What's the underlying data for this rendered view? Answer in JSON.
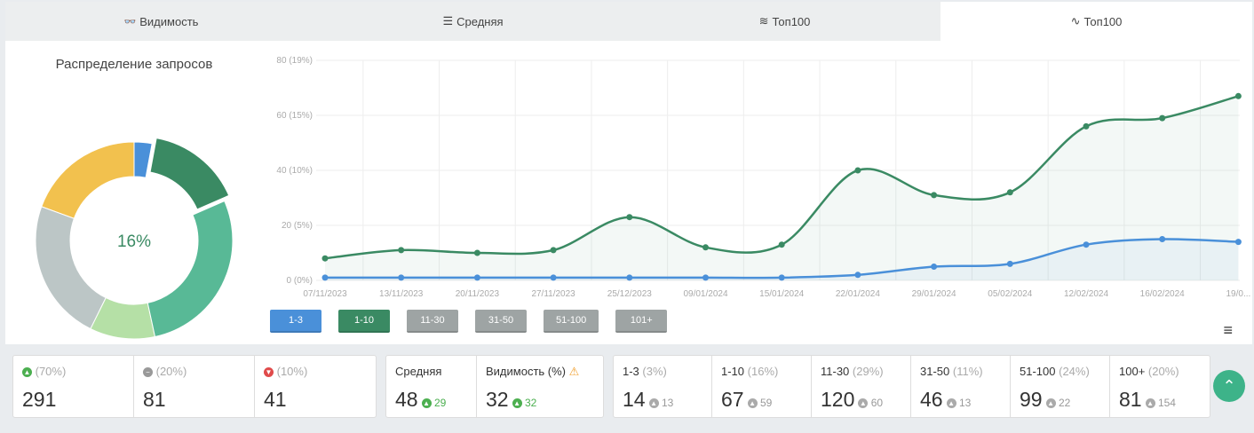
{
  "tabs": [
    {
      "label": "Видимость",
      "icon": "glasses-icon",
      "glyph": "👓"
    },
    {
      "label": "Средняя",
      "icon": "lines-icon",
      "glyph": "☰"
    },
    {
      "label": "Топ100",
      "icon": "layers-icon",
      "glyph": "≋"
    },
    {
      "label": "Топ100",
      "icon": "chart-line-icon",
      "glyph": "∿"
    }
  ],
  "donut": {
    "title": "Распределение запросов",
    "center": "16%",
    "segments": [
      {
        "name": "1-3",
        "pct": 3,
        "color": "#4a90d9"
      },
      {
        "name": "1-10",
        "pct": 16,
        "color": "#3a8a63"
      },
      {
        "name": "11-30",
        "pct": 29,
        "color": "#58b996"
      },
      {
        "name": "31-50",
        "pct": 11,
        "color": "#b5e0a6"
      },
      {
        "name": "51-100",
        "pct": 24,
        "color": "#bcc6c6"
      },
      {
        "name": "100+",
        "pct": 20,
        "color": "#f2c14e"
      }
    ]
  },
  "chart_data": {
    "type": "line",
    "x": [
      "07/11/2023",
      "13/11/2023",
      "20/11/2023",
      "27/11/2023",
      "25/12/2023",
      "09/01/2024",
      "15/01/2024",
      "22/01/2024",
      "29/01/2024",
      "05/02/2024",
      "12/02/2024",
      "16/02/2024",
      "19/0..."
    ],
    "yticks": [
      "0 (0%)",
      "20 (5%)",
      "40 (10%)",
      "60 (15%)",
      "80 (19%)"
    ],
    "ylim": [
      0,
      80
    ],
    "series": [
      {
        "name": "1-10",
        "color": "#3a8a63",
        "values": [
          8,
          11,
          10,
          11,
          23,
          12,
          13,
          40,
          31,
          32,
          56,
          59,
          67
        ]
      },
      {
        "name": "1-3",
        "color": "#4a90d9",
        "values": [
          1,
          1,
          1,
          1,
          1,
          1,
          1,
          2,
          5,
          6,
          13,
          15,
          14
        ]
      }
    ]
  },
  "ranges": [
    {
      "label": "1-3",
      "color": "#4a90d9"
    },
    {
      "label": "1-10",
      "color": "#3a8a63"
    },
    {
      "label": "11-30",
      "color": "#9ea4a4"
    },
    {
      "label": "31-50",
      "color": "#9ea4a4"
    },
    {
      "label": "51-100",
      "color": "#9ea4a4"
    },
    {
      "label": "101+",
      "color": "#9ea4a4"
    }
  ],
  "stats": {
    "up": {
      "pct": "(70%)",
      "value": "291"
    },
    "same": {
      "pct": "(20%)",
      "value": "81"
    },
    "down": {
      "pct": "(10%)",
      "value": "41"
    }
  },
  "avg": {
    "label": "Средняя",
    "value": "48",
    "delta": "29"
  },
  "vis": {
    "label": "Видимость (%)",
    "value": "32",
    "delta": "32"
  },
  "positions": [
    {
      "label": "1-3",
      "pct": "(3%)",
      "value": "14",
      "delta": "13"
    },
    {
      "label": "1-10",
      "pct": "(16%)",
      "value": "67",
      "delta": "59"
    },
    {
      "label": "11-30",
      "pct": "(29%)",
      "value": "120",
      "delta": "60"
    },
    {
      "label": "31-50",
      "pct": "(11%)",
      "value": "46",
      "delta": "13"
    },
    {
      "label": "51-100",
      "pct": "(24%)",
      "value": "99",
      "delta": "22"
    },
    {
      "label": "100+",
      "pct": "(20%)",
      "value": "81",
      "delta": "154"
    }
  ]
}
